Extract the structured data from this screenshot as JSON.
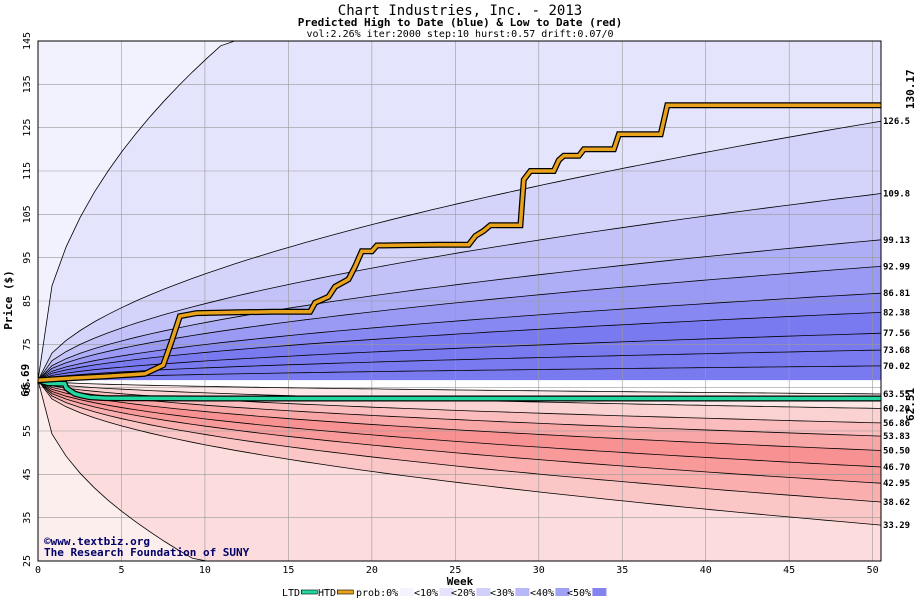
{
  "chart_data": {
    "type": "area",
    "title": "Chart Industries, Inc. - 2013",
    "subtitle": "Predicted High to Date (blue) &  Low to Date (red)",
    "params": "vol:2.26% iter:2000 step:10 hurst:0.57 drift:0.07/0",
    "xlabel": "Week",
    "ylabel": "Price ($)",
    "xlim": [
      0,
      50.5
    ],
    "ylim": [
      25,
      145
    ],
    "x_ticks": [
      0,
      5,
      10,
      15,
      20,
      25,
      30,
      35,
      40,
      45,
      50
    ],
    "y_ticks": [
      25,
      35,
      45,
      55,
      65,
      75,
      85,
      95,
      105,
      115,
      125,
      135,
      145
    ],
    "start_value": 66.69,
    "start_label": "66.69",
    "high_quantile_ends": [
      {
        "value": 126.5,
        "label": "126.5"
      },
      {
        "value": 109.8,
        "label": "109.8"
      },
      {
        "value": 99.13,
        "label": "99.13"
      },
      {
        "value": 92.99,
        "label": "92.99"
      },
      {
        "value": 86.81,
        "label": "86.81"
      },
      {
        "value": 82.38,
        "label": "82.38"
      },
      {
        "value": 77.56,
        "label": "77.56"
      },
      {
        "value": 73.68,
        "label": "73.68"
      },
      {
        "value": 70.02,
        "label": "70.02"
      }
    ],
    "low_quantile_ends": [
      {
        "value": 63.55,
        "label": "63.55"
      },
      {
        "value": 60.2,
        "label": "60.20"
      },
      {
        "value": 56.86,
        "label": "56.86"
      },
      {
        "value": 53.83,
        "label": "53.83"
      },
      {
        "value": 50.5,
        "label": "50.50"
      },
      {
        "value": 46.7,
        "label": "46.70"
      },
      {
        "value": 42.95,
        "label": "42.95"
      },
      {
        "value": 38.62,
        "label": "38.62"
      },
      {
        "value": 33.29,
        "label": "33.29"
      }
    ],
    "actual_high_to_date": {
      "name": "HTD",
      "final_label": "130.17",
      "points": [
        [
          0,
          66.69
        ],
        [
          2,
          67.2
        ],
        [
          4,
          67.6
        ],
        [
          6.4,
          68.2
        ],
        [
          7.5,
          70.2
        ],
        [
          8,
          75.6
        ],
        [
          8.5,
          81.5
        ],
        [
          9.5,
          82.2
        ],
        [
          12,
          82.4
        ],
        [
          14,
          82.5
        ],
        [
          16.3,
          82.5
        ],
        [
          16.6,
          84.6
        ],
        [
          17.4,
          86
        ],
        [
          17.8,
          88.3
        ],
        [
          18.6,
          90
        ],
        [
          19,
          93
        ],
        [
          19.4,
          96.5
        ],
        [
          20,
          96.5
        ],
        [
          20.3,
          97.8
        ],
        [
          22,
          97.9
        ],
        [
          24,
          98
        ],
        [
          25.8,
          98
        ],
        [
          26.2,
          100
        ],
        [
          26.7,
          101.2
        ],
        [
          27.1,
          102.5
        ],
        [
          28.9,
          102.5
        ],
        [
          29.1,
          113
        ],
        [
          29.5,
          115
        ],
        [
          30.9,
          115
        ],
        [
          31.2,
          117.5
        ],
        [
          31.5,
          118.5
        ],
        [
          32.4,
          118.5
        ],
        [
          32.7,
          120
        ],
        [
          34.5,
          120
        ],
        [
          34.8,
          123.5
        ],
        [
          37.3,
          123.5
        ],
        [
          37.7,
          130.17
        ],
        [
          50.5,
          130.17
        ]
      ]
    },
    "actual_low_to_date": {
      "name": "LTD",
      "final_label": "62.51",
      "points": [
        [
          0,
          66.69
        ],
        [
          0.6,
          66
        ],
        [
          1.6,
          65.9
        ],
        [
          1.7,
          64.9
        ],
        [
          2.2,
          63.6
        ],
        [
          2.6,
          63.2
        ],
        [
          3.1,
          62.8
        ],
        [
          4,
          62.6
        ],
        [
          6,
          62.55
        ],
        [
          10,
          62.51
        ],
        [
          50.5,
          62.51
        ]
      ]
    },
    "legend": [
      "LTD",
      "HTD",
      "prob:0%",
      "<10%",
      "<20%",
      "<30%",
      "<40%",
      "<50%"
    ],
    "legend_items": [
      {
        "label": "LTD",
        "color": "#22d8a0"
      },
      {
        "label": "HTD",
        "color": "#e8a21c"
      },
      {
        "label": "prob:0%",
        "color": "#f4f4ff"
      },
      {
        "label": "<10%",
        "color": "#e4e4ff"
      },
      {
        "label": "<20%",
        "color": "#d0d0fa"
      },
      {
        "label": "<30%",
        "color": "#b8b8f8"
      },
      {
        "label": "<40%",
        "color": "#a0a0f4"
      },
      {
        "label": "<50%",
        "color": "#8484f0"
      }
    ],
    "colors": {
      "blue_bands": [
        "#f2f2fe",
        "#e4e4fc",
        "#d4d4fa",
        "#c2c2f8",
        "#aeaef6",
        "#9a9af4",
        "#8888f2",
        "#7a7af0"
      ],
      "red_bands": [
        "#fdeeee",
        "#fcdcdc",
        "#fbc6c6",
        "#faaeae",
        "#f89a9a",
        "#f78888"
      ],
      "htd": "#e8a21c",
      "ltd": "#22d8a0",
      "htd_label": "#806000",
      "ltd_label": "#007a50",
      "start_label": "#007a50"
    }
  },
  "credits": {
    "copyright": "©www.textbiz.org",
    "org": "The Research Foundation of SUNY"
  }
}
